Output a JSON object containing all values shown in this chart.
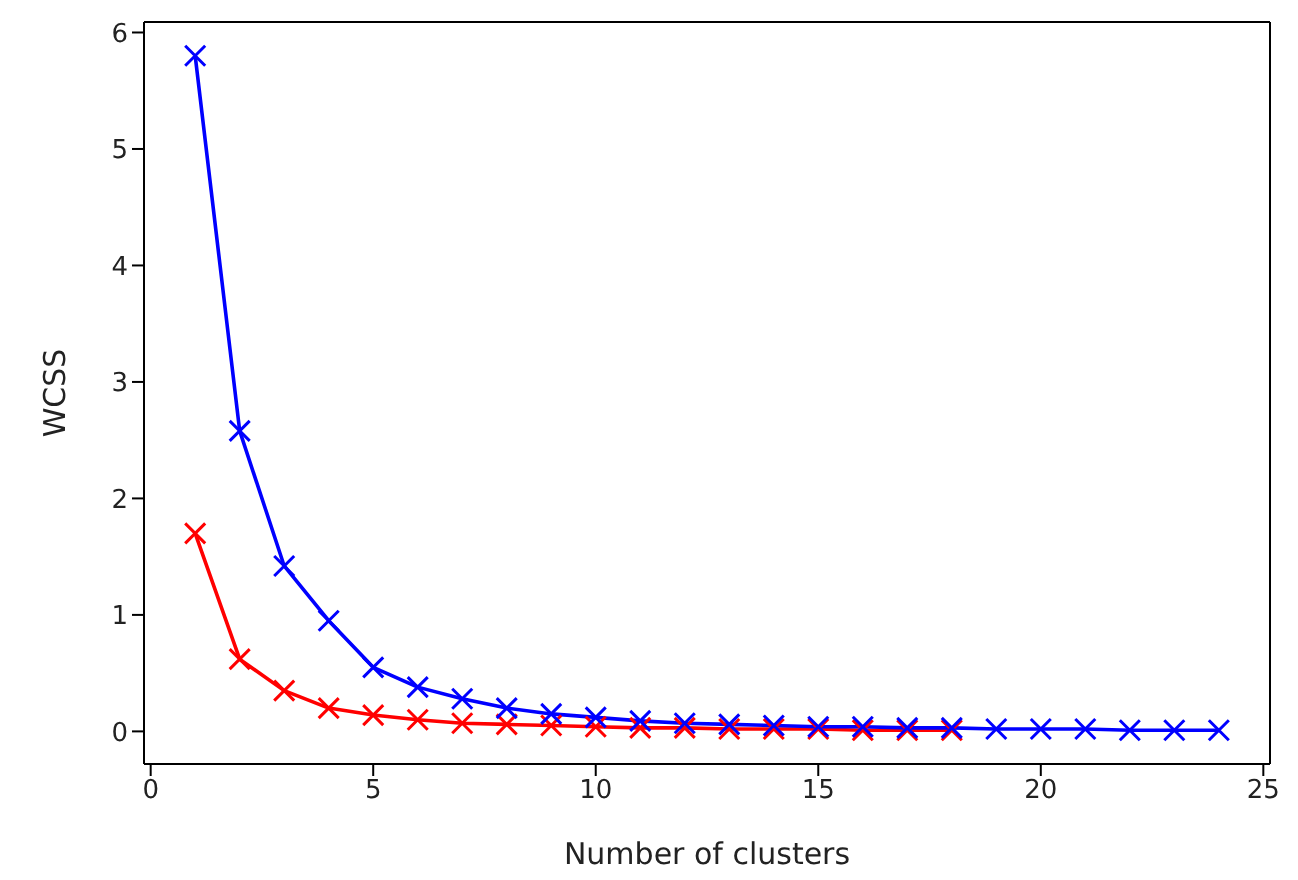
{
  "chart_data": {
    "type": "line",
    "xlabel": "Number of clusters",
    "ylabel": "WCSS",
    "xlim": [
      -0.15,
      25.15
    ],
    "xticks": [
      0,
      5,
      10,
      15,
      20,
      25
    ],
    "ylim": [
      -0.28,
      6.09
    ],
    "yticks": [
      0,
      1,
      2,
      3,
      4,
      5,
      6
    ],
    "marker": "cross",
    "line_style": "solid",
    "series": [
      {
        "color": "#ff0000",
        "x": [
          1,
          2,
          3,
          4,
          5,
          6,
          7,
          8,
          9,
          10,
          11,
          12,
          13,
          14,
          15,
          16,
          17,
          18
        ],
        "values": [
          1.7,
          0.62,
          0.35,
          0.2,
          0.14,
          0.1,
          0.07,
          0.06,
          0.05,
          0.04,
          0.03,
          0.03,
          0.02,
          0.02,
          0.02,
          0.01,
          0.01,
          0.01
        ]
      },
      {
        "color": "#0000ff",
        "x": [
          1,
          2,
          3,
          4,
          5,
          6,
          7,
          8,
          9,
          10,
          11,
          12,
          13,
          14,
          15,
          16,
          17,
          18,
          19,
          20,
          21,
          22,
          23,
          24
        ],
        "values": [
          5.8,
          2.58,
          1.42,
          0.95,
          0.55,
          0.38,
          0.28,
          0.2,
          0.15,
          0.12,
          0.09,
          0.07,
          0.06,
          0.05,
          0.04,
          0.04,
          0.03,
          0.03,
          0.02,
          0.02,
          0.02,
          0.01,
          0.01,
          0.01
        ]
      }
    ]
  }
}
